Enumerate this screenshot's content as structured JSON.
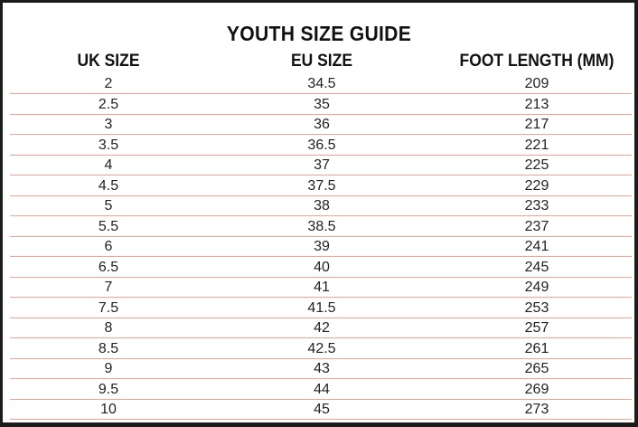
{
  "title": "YOUTH SIZE GUIDE",
  "columns": [
    "UK SIZE",
    "EU SIZE",
    "FOOT LENGTH (MM)"
  ],
  "rows": [
    [
      "2",
      "34.5",
      "209"
    ],
    [
      "2.5",
      "35",
      "213"
    ],
    [
      "3",
      "36",
      "217"
    ],
    [
      "3.5",
      "36.5",
      "221"
    ],
    [
      "4",
      "37",
      "225"
    ],
    [
      "4.5",
      "37.5",
      "229"
    ],
    [
      "5",
      "38",
      "233"
    ],
    [
      "5.5",
      "38.5",
      "237"
    ],
    [
      "6",
      "39",
      "241"
    ],
    [
      "6.5",
      "40",
      "245"
    ],
    [
      "7",
      "41",
      "249"
    ],
    [
      "7.5",
      "41.5",
      "253"
    ],
    [
      "8",
      "42",
      "257"
    ],
    [
      "8.5",
      "42.5",
      "261"
    ],
    [
      "9",
      "43",
      "265"
    ],
    [
      "9.5",
      "44",
      "269"
    ],
    [
      "10",
      "45",
      "273"
    ]
  ],
  "colors": {
    "rule": "#f0a58c",
    "border": "#1b1b1b",
    "text": "#111111"
  }
}
